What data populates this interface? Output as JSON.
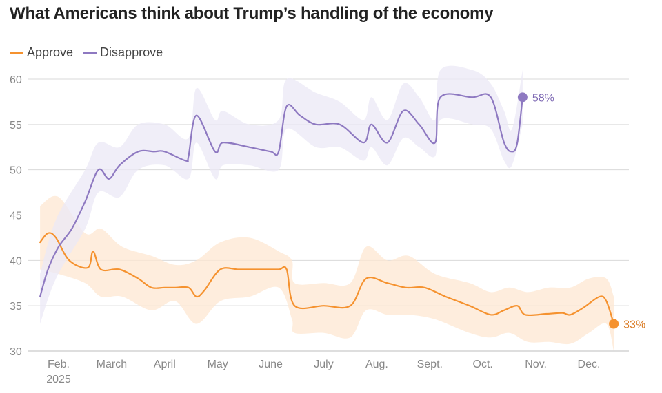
{
  "chart_data": {
    "type": "line",
    "title": "What Americans think about Trump’s handling of the economy",
    "xlabel": "",
    "ylabel": "",
    "ylim": [
      30,
      60
    ],
    "yticks": [
      60,
      55,
      50,
      45,
      40,
      35,
      30
    ],
    "grid": true,
    "legend_placement": "top-left",
    "x_tick_labels": [
      {
        "label": "Feb.",
        "sublabel": "2025",
        "x": 1.0
      },
      {
        "label": "March",
        "x": 2.0
      },
      {
        "label": "April",
        "x": 3.0
      },
      {
        "label": "May",
        "x": 4.0
      },
      {
        "label": "June",
        "x": 5.0
      },
      {
        "label": "July",
        "x": 6.0
      },
      {
        "label": "Aug.",
        "x": 7.0
      },
      {
        "label": "Sept.",
        "x": 8.0
      },
      {
        "label": "Oct.",
        "x": 9.0
      },
      {
        "label": "Nov.",
        "x": 10.0
      },
      {
        "label": "Dec.",
        "x": 11.0
      }
    ],
    "series": [
      {
        "name": "Approve",
        "color": "#f5922f",
        "band_color": "#fde7d2",
        "end_label": "33%",
        "points": [
          [
            0.65,
            42
          ],
          [
            0.8,
            43
          ],
          [
            0.95,
            42.5
          ],
          [
            1.2,
            40
          ],
          [
            1.55,
            39.2
          ],
          [
            1.65,
            41
          ],
          [
            1.8,
            39
          ],
          [
            2.15,
            39
          ],
          [
            2.5,
            38
          ],
          [
            2.75,
            37
          ],
          [
            3.0,
            37
          ],
          [
            3.2,
            37
          ],
          [
            3.45,
            37
          ],
          [
            3.6,
            36
          ],
          [
            3.75,
            36.7
          ],
          [
            4.05,
            39
          ],
          [
            4.4,
            39
          ],
          [
            4.8,
            39
          ],
          [
            5.15,
            39
          ],
          [
            5.3,
            39
          ],
          [
            5.45,
            35
          ],
          [
            6.0,
            35
          ],
          [
            6.5,
            35
          ],
          [
            6.8,
            38
          ],
          [
            7.2,
            37.5
          ],
          [
            7.55,
            37
          ],
          [
            7.9,
            37
          ],
          [
            8.3,
            36
          ],
          [
            8.75,
            35
          ],
          [
            9.15,
            34
          ],
          [
            9.4,
            34.5
          ],
          [
            9.65,
            35
          ],
          [
            9.8,
            34
          ],
          [
            10.2,
            34.1
          ],
          [
            10.5,
            34.2
          ],
          [
            10.65,
            34
          ],
          [
            10.9,
            34.8
          ],
          [
            11.2,
            36
          ],
          [
            11.33,
            35.5
          ],
          [
            11.47,
            33
          ]
        ],
        "band": [
          [
            0.65,
            39,
            46
          ],
          [
            1.0,
            38.5,
            47
          ],
          [
            1.5,
            37.5,
            43
          ],
          [
            1.8,
            36,
            43.5
          ],
          [
            2.2,
            36,
            41.5
          ],
          [
            2.75,
            34.5,
            40.5
          ],
          [
            3.2,
            35.5,
            39.5
          ],
          [
            3.6,
            33,
            40
          ],
          [
            4.05,
            35.5,
            42
          ],
          [
            4.6,
            36,
            42.5
          ],
          [
            5.15,
            37,
            41
          ],
          [
            5.4,
            33.5,
            40
          ],
          [
            5.45,
            32,
            37.5
          ],
          [
            6.0,
            32,
            37.5
          ],
          [
            6.5,
            31.5,
            37.5
          ],
          [
            6.8,
            34.5,
            41.5
          ],
          [
            7.2,
            34,
            40
          ],
          [
            7.6,
            34,
            40.5
          ],
          [
            8.1,
            33.5,
            38.5
          ],
          [
            8.75,
            32,
            37.5
          ],
          [
            9.15,
            31.5,
            36.5
          ],
          [
            9.5,
            32,
            37
          ],
          [
            9.85,
            31,
            36.5
          ],
          [
            10.25,
            31,
            37
          ],
          [
            10.65,
            30.8,
            37
          ],
          [
            11.0,
            32,
            38
          ],
          [
            11.33,
            33,
            38
          ],
          [
            11.47,
            30,
            36
          ]
        ]
      },
      {
        "name": "Disapprove",
        "color": "#8e79c1",
        "band_color": "#ebe8f6",
        "end_label": "58%",
        "points": [
          [
            0.65,
            36
          ],
          [
            0.8,
            39
          ],
          [
            1.0,
            41.5
          ],
          [
            1.25,
            43.5
          ],
          [
            1.5,
            46.5
          ],
          [
            1.75,
            50
          ],
          [
            1.95,
            49
          ],
          [
            2.15,
            50.5
          ],
          [
            2.5,
            52
          ],
          [
            2.8,
            52
          ],
          [
            3.0,
            52
          ],
          [
            3.4,
            51
          ],
          [
            3.45,
            51.5
          ],
          [
            3.6,
            56
          ],
          [
            3.95,
            52
          ],
          [
            4.1,
            53
          ],
          [
            4.6,
            52.5
          ],
          [
            5.0,
            52
          ],
          [
            5.15,
            52
          ],
          [
            5.3,
            57
          ],
          [
            5.55,
            56
          ],
          [
            5.85,
            55
          ],
          [
            6.3,
            55
          ],
          [
            6.75,
            53
          ],
          [
            6.9,
            55
          ],
          [
            7.2,
            53
          ],
          [
            7.5,
            56.5
          ],
          [
            7.8,
            55
          ],
          [
            8.1,
            53
          ],
          [
            8.2,
            58
          ],
          [
            8.8,
            58
          ],
          [
            9.15,
            58
          ],
          [
            9.4,
            53
          ],
          [
            9.55,
            52
          ],
          [
            9.65,
            53
          ],
          [
            9.75,
            58
          ]
        ],
        "band": [
          [
            0.65,
            33,
            38.5
          ],
          [
            0.95,
            38,
            44.5
          ],
          [
            1.5,
            43.5,
            50
          ],
          [
            1.75,
            47.5,
            53
          ],
          [
            2.15,
            47,
            52.5
          ],
          [
            2.5,
            50,
            55
          ],
          [
            3.0,
            50.5,
            55
          ],
          [
            3.45,
            49,
            53.5
          ],
          [
            3.6,
            53,
            59
          ],
          [
            3.95,
            49,
            55.5
          ],
          [
            4.1,
            50.5,
            56.5
          ],
          [
            4.6,
            50.5,
            55
          ],
          [
            5.15,
            50,
            55.5
          ],
          [
            5.3,
            54.5,
            60
          ],
          [
            5.85,
            52.5,
            58.5
          ],
          [
            6.3,
            52.5,
            57.5
          ],
          [
            6.75,
            51,
            55.5
          ],
          [
            6.9,
            52.5,
            58
          ],
          [
            7.2,
            50.5,
            55.5
          ],
          [
            7.5,
            53.5,
            59.5
          ],
          [
            7.8,
            52.5,
            58
          ],
          [
            8.1,
            51.5,
            55.5
          ],
          [
            8.2,
            55.5,
            61
          ],
          [
            8.8,
            55,
            61
          ],
          [
            9.15,
            54.5,
            59.5
          ],
          [
            9.4,
            51,
            56.5
          ],
          [
            9.55,
            50.5,
            54.5
          ],
          [
            9.75,
            55,
            61
          ]
        ]
      }
    ]
  }
}
